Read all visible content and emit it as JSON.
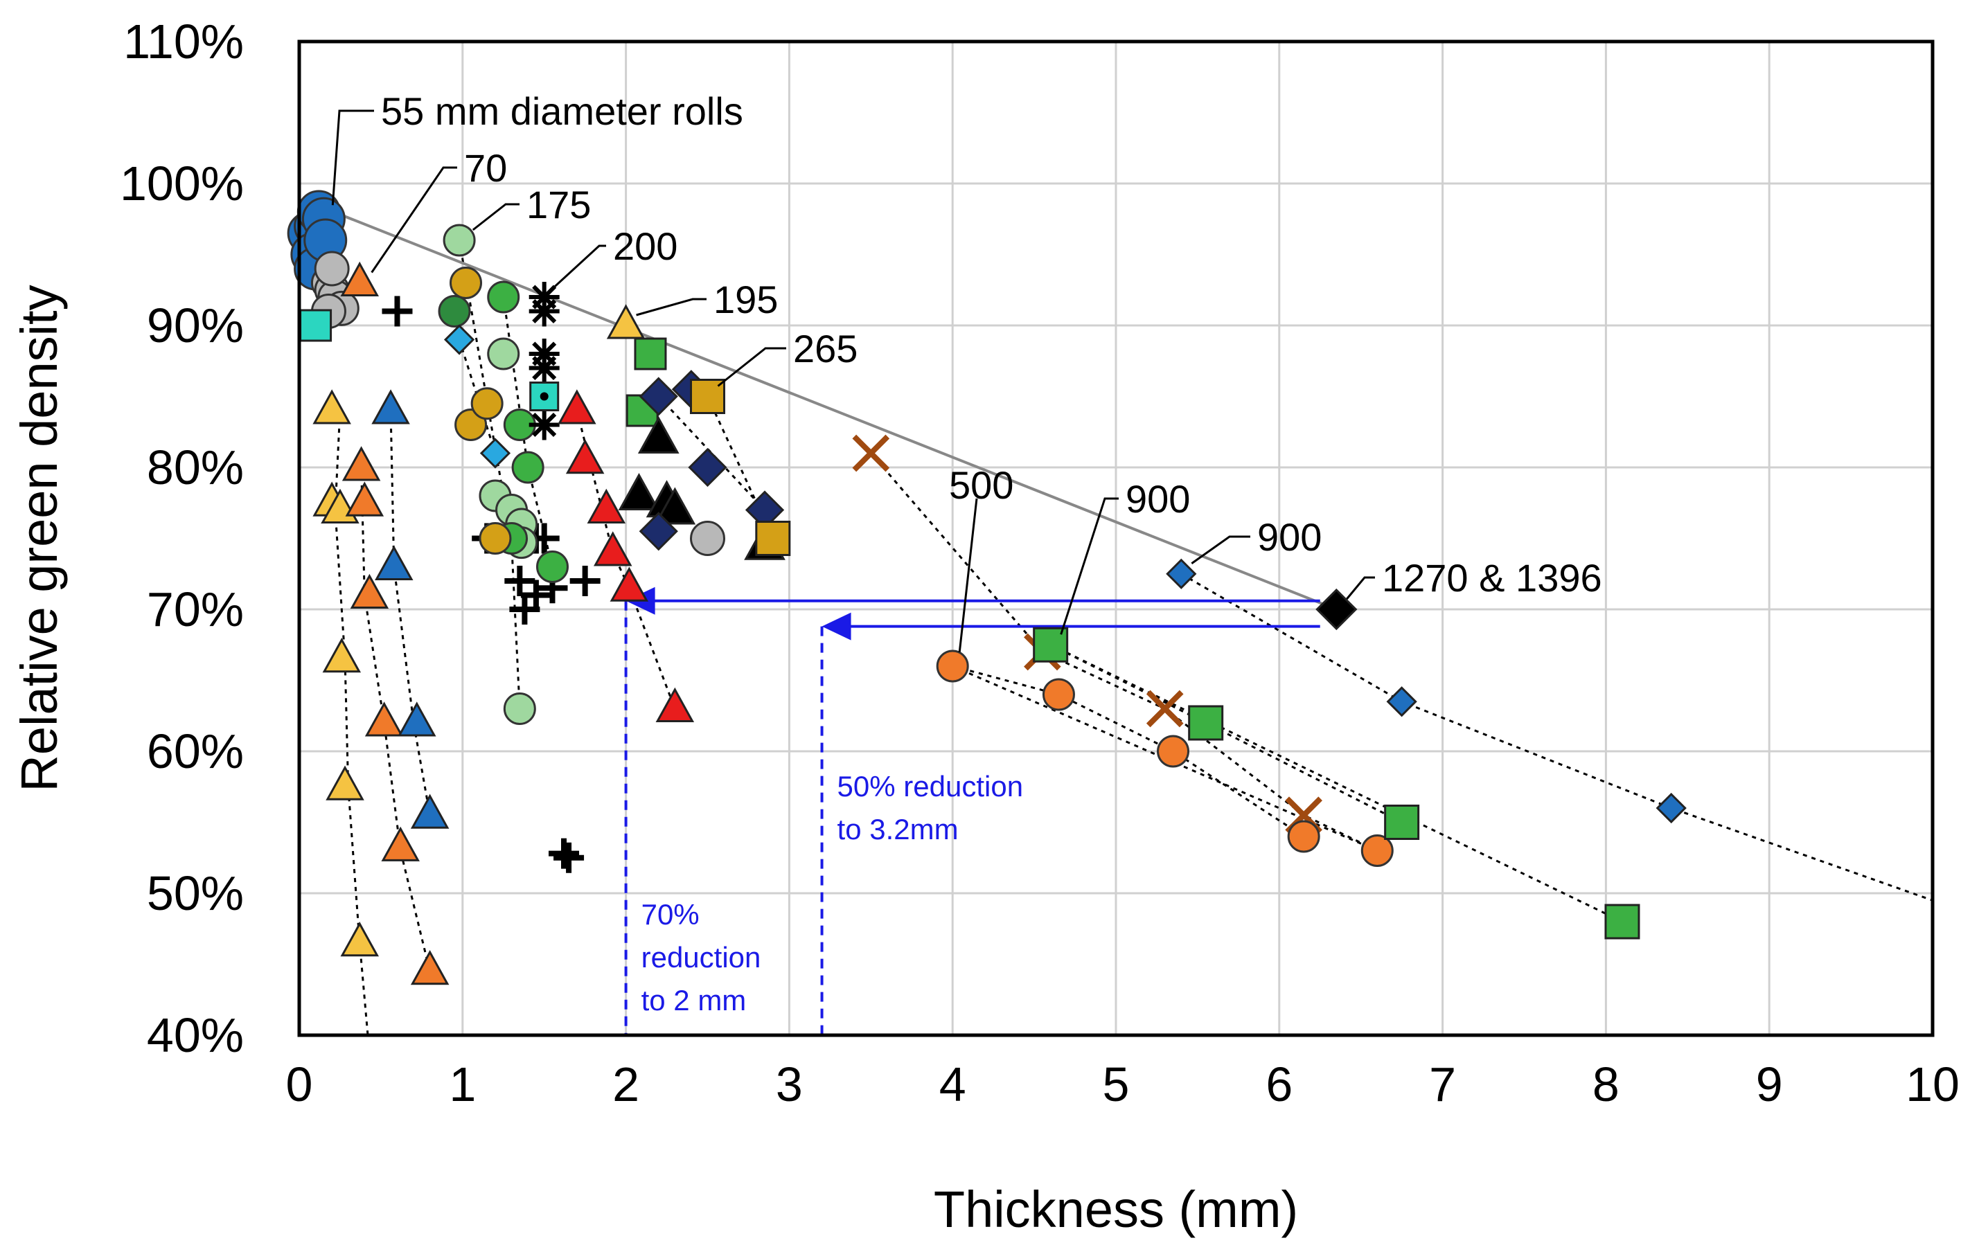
{
  "chart_data": {
    "type": "scatter",
    "xlabel": "Thickness (mm)",
    "ylabel": "Relative green density",
    "xlim": [
      0,
      10
    ],
    "ylim": [
      40,
      110
    ],
    "x_ticks": [
      "0",
      "1",
      "2",
      "3",
      "4",
      "5",
      "6",
      "7",
      "8",
      "9",
      "10"
    ],
    "y_ticks": [
      "40%",
      "50%",
      "60%",
      "70%",
      "80%",
      "90%",
      "100%",
      "110%"
    ],
    "grid": true,
    "legend": "none",
    "colors": {
      "blue_marker": "#1f6fbf",
      "blue_arrow": "#1a1ae6",
      "green": "#3cb043",
      "light_green": "#9fd89f",
      "orange": "#f07a2a",
      "yellow": "#f5c342",
      "red": "#e81d1d",
      "gold": "#d4a017",
      "brown_x": "#a04a10",
      "cyan": "#2bd6c0",
      "navy": "#1c2c6b",
      "gray": "#b8b8b8"
    },
    "annotations": [
      {
        "text": "55 mm diameter rolls",
        "x": 0.12,
        "y": 97.5
      },
      {
        "text": "70",
        "x": 0.38,
        "y": 93
      },
      {
        "text": "175",
        "x": 1.0,
        "y": 96
      },
      {
        "text": "200",
        "x": 1.5,
        "y": 92
      },
      {
        "text": "195",
        "x": 2.0,
        "y": 90
      },
      {
        "text": "265",
        "x": 2.5,
        "y": 85
      },
      {
        "text": "500",
        "x": 4.0,
        "y": 66
      },
      {
        "text": "900",
        "x": 4.6,
        "y": 67.5
      },
      {
        "text": "900",
        "x": 5.4,
        "y": 72.5
      },
      {
        "text": "1270 & 1396",
        "x": 6.35,
        "y": 70
      }
    ],
    "reductions": [
      {
        "label_lines": [
          "70%",
          "reduction",
          "to 2 mm"
        ],
        "x": 2.0,
        "arrow_y": 70.6,
        "arrow_from_x": 6.25
      },
      {
        "label_lines": [
          "50% reduction",
          "to 3.2mm"
        ],
        "x": 3.2,
        "arrow_y": 68.8,
        "arrow_from_x": 6.25
      }
    ],
    "envelope_line": [
      [
        0.1,
        98.5
      ],
      [
        6.35,
        70
      ]
    ],
    "series": [
      {
        "shape": "circle",
        "color": "#1f6fbf",
        "size": 30,
        "points": [
          [
            0.06,
            96.5
          ],
          [
            0.1,
            97
          ],
          [
            0.12,
            98
          ],
          [
            0.15,
            97.5
          ],
          [
            0.08,
            95
          ],
          [
            0.1,
            94
          ],
          [
            0.16,
            96
          ]
        ]
      },
      {
        "shape": "circle",
        "color": "#b8b8b8",
        "size": 24,
        "points": [
          [
            0.18,
            93
          ],
          [
            0.2,
            92.5
          ],
          [
            0.22,
            92
          ],
          [
            0.26,
            91.2
          ],
          [
            0.18,
            91
          ],
          [
            0.2,
            94
          ]
        ]
      },
      {
        "shape": "square",
        "color": "#2bd6c0",
        "size": 22,
        "points": [
          [
            0.1,
            90
          ]
        ]
      },
      {
        "shape": "triangle",
        "color": "#f07a2a",
        "size": 24,
        "points": [
          [
            0.37,
            93
          ]
        ]
      },
      {
        "shape": "plus",
        "color": "#000000",
        "size": 22,
        "points": [
          [
            0.6,
            91
          ],
          [
            1.15,
            75
          ],
          [
            1.45,
            75
          ],
          [
            1.5,
            75
          ],
          [
            1.35,
            72
          ],
          [
            1.55,
            71.5
          ],
          [
            1.75,
            72
          ],
          [
            1.38,
            70
          ],
          [
            1.45,
            71
          ],
          [
            1.62,
            52.8
          ],
          [
            1.65,
            52.5
          ]
        ]
      },
      {
        "shape": "triangle",
        "color": "#f5c342",
        "size": 24,
        "points": [
          [
            0.2,
            84
          ],
          [
            0.2,
            77.5
          ],
          [
            0.25,
            77
          ],
          [
            0.26,
            66.5
          ],
          [
            0.28,
            57.5
          ],
          [
            0.37,
            46.5
          ]
        ]
      },
      {
        "shape": "triangle",
        "color": "#f07a2a",
        "size": 24,
        "points": [
          [
            0.38,
            80
          ],
          [
            0.4,
            77.5
          ],
          [
            0.43,
            71
          ],
          [
            0.52,
            62
          ],
          [
            0.62,
            53.2
          ],
          [
            0.8,
            44.5
          ]
        ]
      },
      {
        "shape": "triangle",
        "color": "#1f6fbf",
        "size": 24,
        "points": [
          [
            0.56,
            84
          ],
          [
            0.58,
            73
          ],
          [
            0.72,
            62
          ],
          [
            0.8,
            55.5
          ]
        ]
      },
      {
        "shape": "circle",
        "color": "#9fd89f",
        "size": 22,
        "points": [
          [
            0.98,
            96
          ],
          [
            1.25,
            88
          ],
          [
            1.2,
            78
          ],
          [
            1.3,
            77
          ],
          [
            1.36,
            76
          ],
          [
            1.36,
            74.7
          ],
          [
            1.35,
            63
          ]
        ]
      },
      {
        "shape": "circle",
        "color": "#2e8b3e",
        "size": 22,
        "points": [
          [
            0.95,
            91
          ]
        ]
      },
      {
        "shape": "circle",
        "color": "#3cb043",
        "size": 22,
        "points": [
          [
            1.25,
            92
          ],
          [
            1.35,
            83
          ],
          [
            1.4,
            80
          ],
          [
            1.55,
            73
          ],
          [
            1.3,
            75
          ]
        ]
      },
      {
        "shape": "circle",
        "color": "#d4a017",
        "size": 22,
        "points": [
          [
            1.02,
            93
          ],
          [
            1.05,
            83
          ],
          [
            1.15,
            84.5
          ],
          [
            1.2,
            75
          ]
        ]
      },
      {
        "shape": "diamond",
        "color": "#29a8e0",
        "size": 20,
        "points": [
          [
            0.98,
            89
          ],
          [
            1.2,
            81
          ]
        ]
      },
      {
        "shape": "asterisk",
        "color": "#000000",
        "size": 22,
        "points": [
          [
            1.5,
            92
          ],
          [
            1.5,
            91
          ],
          [
            1.5,
            88
          ],
          [
            1.5,
            87
          ],
          [
            1.5,
            83
          ]
        ]
      },
      {
        "shape": "square",
        "color": "#2bd6c0",
        "size": 20,
        "points": [
          [
            1.5,
            85
          ]
        ]
      },
      {
        "shape": "triangle",
        "color": "#e81d1d",
        "size": 24,
        "points": [
          [
            1.7,
            84
          ],
          [
            1.75,
            80.5
          ],
          [
            1.88,
            77
          ],
          [
            1.92,
            74
          ],
          [
            2.02,
            71.5
          ],
          [
            2.3,
            63
          ]
        ]
      },
      {
        "shape": "triangle",
        "color": "#f5c342",
        "size": 24,
        "points": [
          [
            2.0,
            90
          ]
        ]
      },
      {
        "shape": "square",
        "color": "#3cb043",
        "size": 22,
        "points": [
          [
            2.15,
            88
          ],
          [
            2.1,
            84
          ]
        ]
      },
      {
        "shape": "triangle",
        "color": "#000000",
        "size": 26,
        "points": [
          [
            2.2,
            82
          ],
          [
            2.08,
            78
          ],
          [
            2.25,
            77.5
          ],
          [
            2.3,
            77
          ],
          [
            2.85,
            74.5
          ]
        ]
      },
      {
        "shape": "diamond",
        "color": "#1c2c6b",
        "size": 26,
        "points": [
          [
            2.2,
            85
          ],
          [
            2.4,
            85.5
          ],
          [
            2.5,
            80
          ],
          [
            2.2,
            75.5
          ],
          [
            2.85,
            77
          ]
        ]
      },
      {
        "shape": "circle",
        "color": "#b8b8b8",
        "size": 24,
        "points": [
          [
            2.5,
            75
          ]
        ]
      },
      {
        "shape": "square",
        "color": "#d4a017",
        "size": 24,
        "points": [
          [
            2.5,
            85
          ],
          [
            2.9,
            75
          ]
        ]
      },
      {
        "shape": "x",
        "color": "#a04a10",
        "size": 24,
        "points": [
          [
            3.5,
            81
          ],
          [
            4.55,
            67
          ],
          [
            5.3,
            63
          ],
          [
            6.15,
            55.5
          ]
        ]
      },
      {
        "shape": "circle",
        "color": "#f07a2a",
        "size": 22,
        "points": [
          [
            4.0,
            66
          ],
          [
            4.65,
            64
          ],
          [
            5.35,
            60
          ],
          [
            6.15,
            54
          ],
          [
            6.6,
            53
          ]
        ]
      },
      {
        "shape": "square",
        "color": "#3cb043",
        "size": 24,
        "points": [
          [
            4.6,
            67.5
          ],
          [
            5.55,
            62
          ],
          [
            6.75,
            55
          ],
          [
            8.1,
            48
          ]
        ]
      },
      {
        "shape": "diamond",
        "color": "#1f6fbf",
        "size": 20,
        "points": [
          [
            5.4,
            72.5
          ],
          [
            6.75,
            63.5
          ],
          [
            8.4,
            56
          ]
        ]
      },
      {
        "shape": "diamond",
        "color": "#000000",
        "size": 28,
        "points": [
          [
            6.35,
            70
          ]
        ]
      }
    ],
    "dotted_trends": [
      [
        [
          0.25,
          84
        ],
        [
          0.22,
          77
        ],
        [
          0.28,
          66.5
        ],
        [
          0.3,
          57.5
        ],
        [
          0.37,
          46.5
        ],
        [
          0.42,
          40
        ]
      ],
      [
        [
          0.38,
          80
        ],
        [
          0.4,
          71
        ],
        [
          0.52,
          62
        ],
        [
          0.62,
          53
        ],
        [
          0.8,
          44.5
        ]
      ],
      [
        [
          0.56,
          84
        ],
        [
          0.58,
          73
        ],
        [
          0.7,
          62
        ],
        [
          0.8,
          55.5
        ]
      ],
      [
        [
          0.98,
          96
        ],
        [
          1.3,
          74.7
        ],
        [
          1.35,
          63
        ]
      ],
      [
        [
          0.98,
          89
        ],
        [
          1.2,
          81
        ]
      ],
      [
        [
          1.25,
          92
        ],
        [
          1.4,
          80
        ],
        [
          1.55,
          73
        ]
      ],
      [
        [
          1.7,
          84
        ],
        [
          1.92,
          74
        ],
        [
          2.02,
          71.5
        ],
        [
          2.3,
          63
        ]
      ],
      [
        [
          2.5,
          85
        ],
        [
          2.9,
          75
        ]
      ],
      [
        [
          2.2,
          85
        ],
        [
          2.85,
          77
        ]
      ],
      [
        [
          3.5,
          81
        ],
        [
          4.55,
          67
        ],
        [
          5.3,
          63
        ],
        [
          6.15,
          55.5
        ],
        [
          6.6,
          53
        ]
      ],
      [
        [
          4.0,
          66
        ],
        [
          4.65,
          64
        ],
        [
          5.35,
          60
        ],
        [
          6.15,
          54
        ]
      ],
      [
        [
          4.0,
          66
        ],
        [
          6.6,
          53
        ]
      ],
      [
        [
          4.6,
          67.5
        ],
        [
          5.55,
          62
        ],
        [
          6.75,
          55
        ]
      ],
      [
        [
          4.6,
          67.5
        ],
        [
          8.1,
          48
        ]
      ],
      [
        [
          5.4,
          72.5
        ],
        [
          6.75,
          63.5
        ],
        [
          8.4,
          56
        ],
        [
          10,
          49.5
        ]
      ]
    ]
  }
}
